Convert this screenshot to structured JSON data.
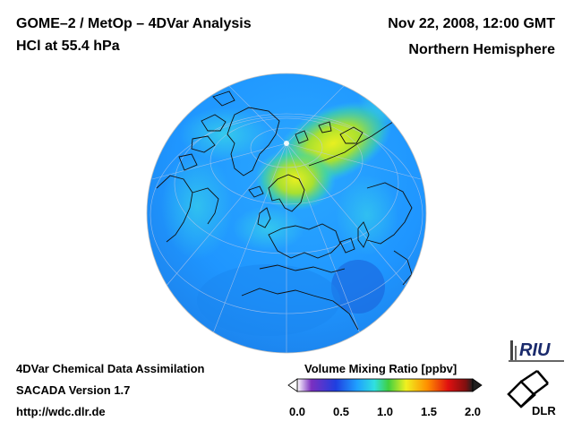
{
  "header": {
    "title_line1": "GOME–2 / MetOp – 4DVar Analysis",
    "title_line2": "HCl at 55.4 hPa",
    "date": "Nov 22, 2008, 12:00 GMT",
    "region": "Northern Hemisphere"
  },
  "footer": {
    "line1": "4DVar Chemical Data Assimilation",
    "line2": "SACADA Version 1.7",
    "line3": "http://wdc.dlr.de"
  },
  "colorbar": {
    "title": "Volume Mixing Ratio [ppbv]",
    "ticks": [
      "0.0",
      "0.5",
      "1.0",
      "1.5",
      "2.0"
    ],
    "min": 0.0,
    "max": 2.0,
    "colors": [
      "#ffffff",
      "#7b2fc0",
      "#1f3fe0",
      "#1fa0ff",
      "#30e0e0",
      "#40d040",
      "#f0f020",
      "#ff9000",
      "#e01010",
      "#801010",
      "#202020"
    ]
  },
  "logos": {
    "riu": "RIU",
    "dlr": "DLR"
  }
}
